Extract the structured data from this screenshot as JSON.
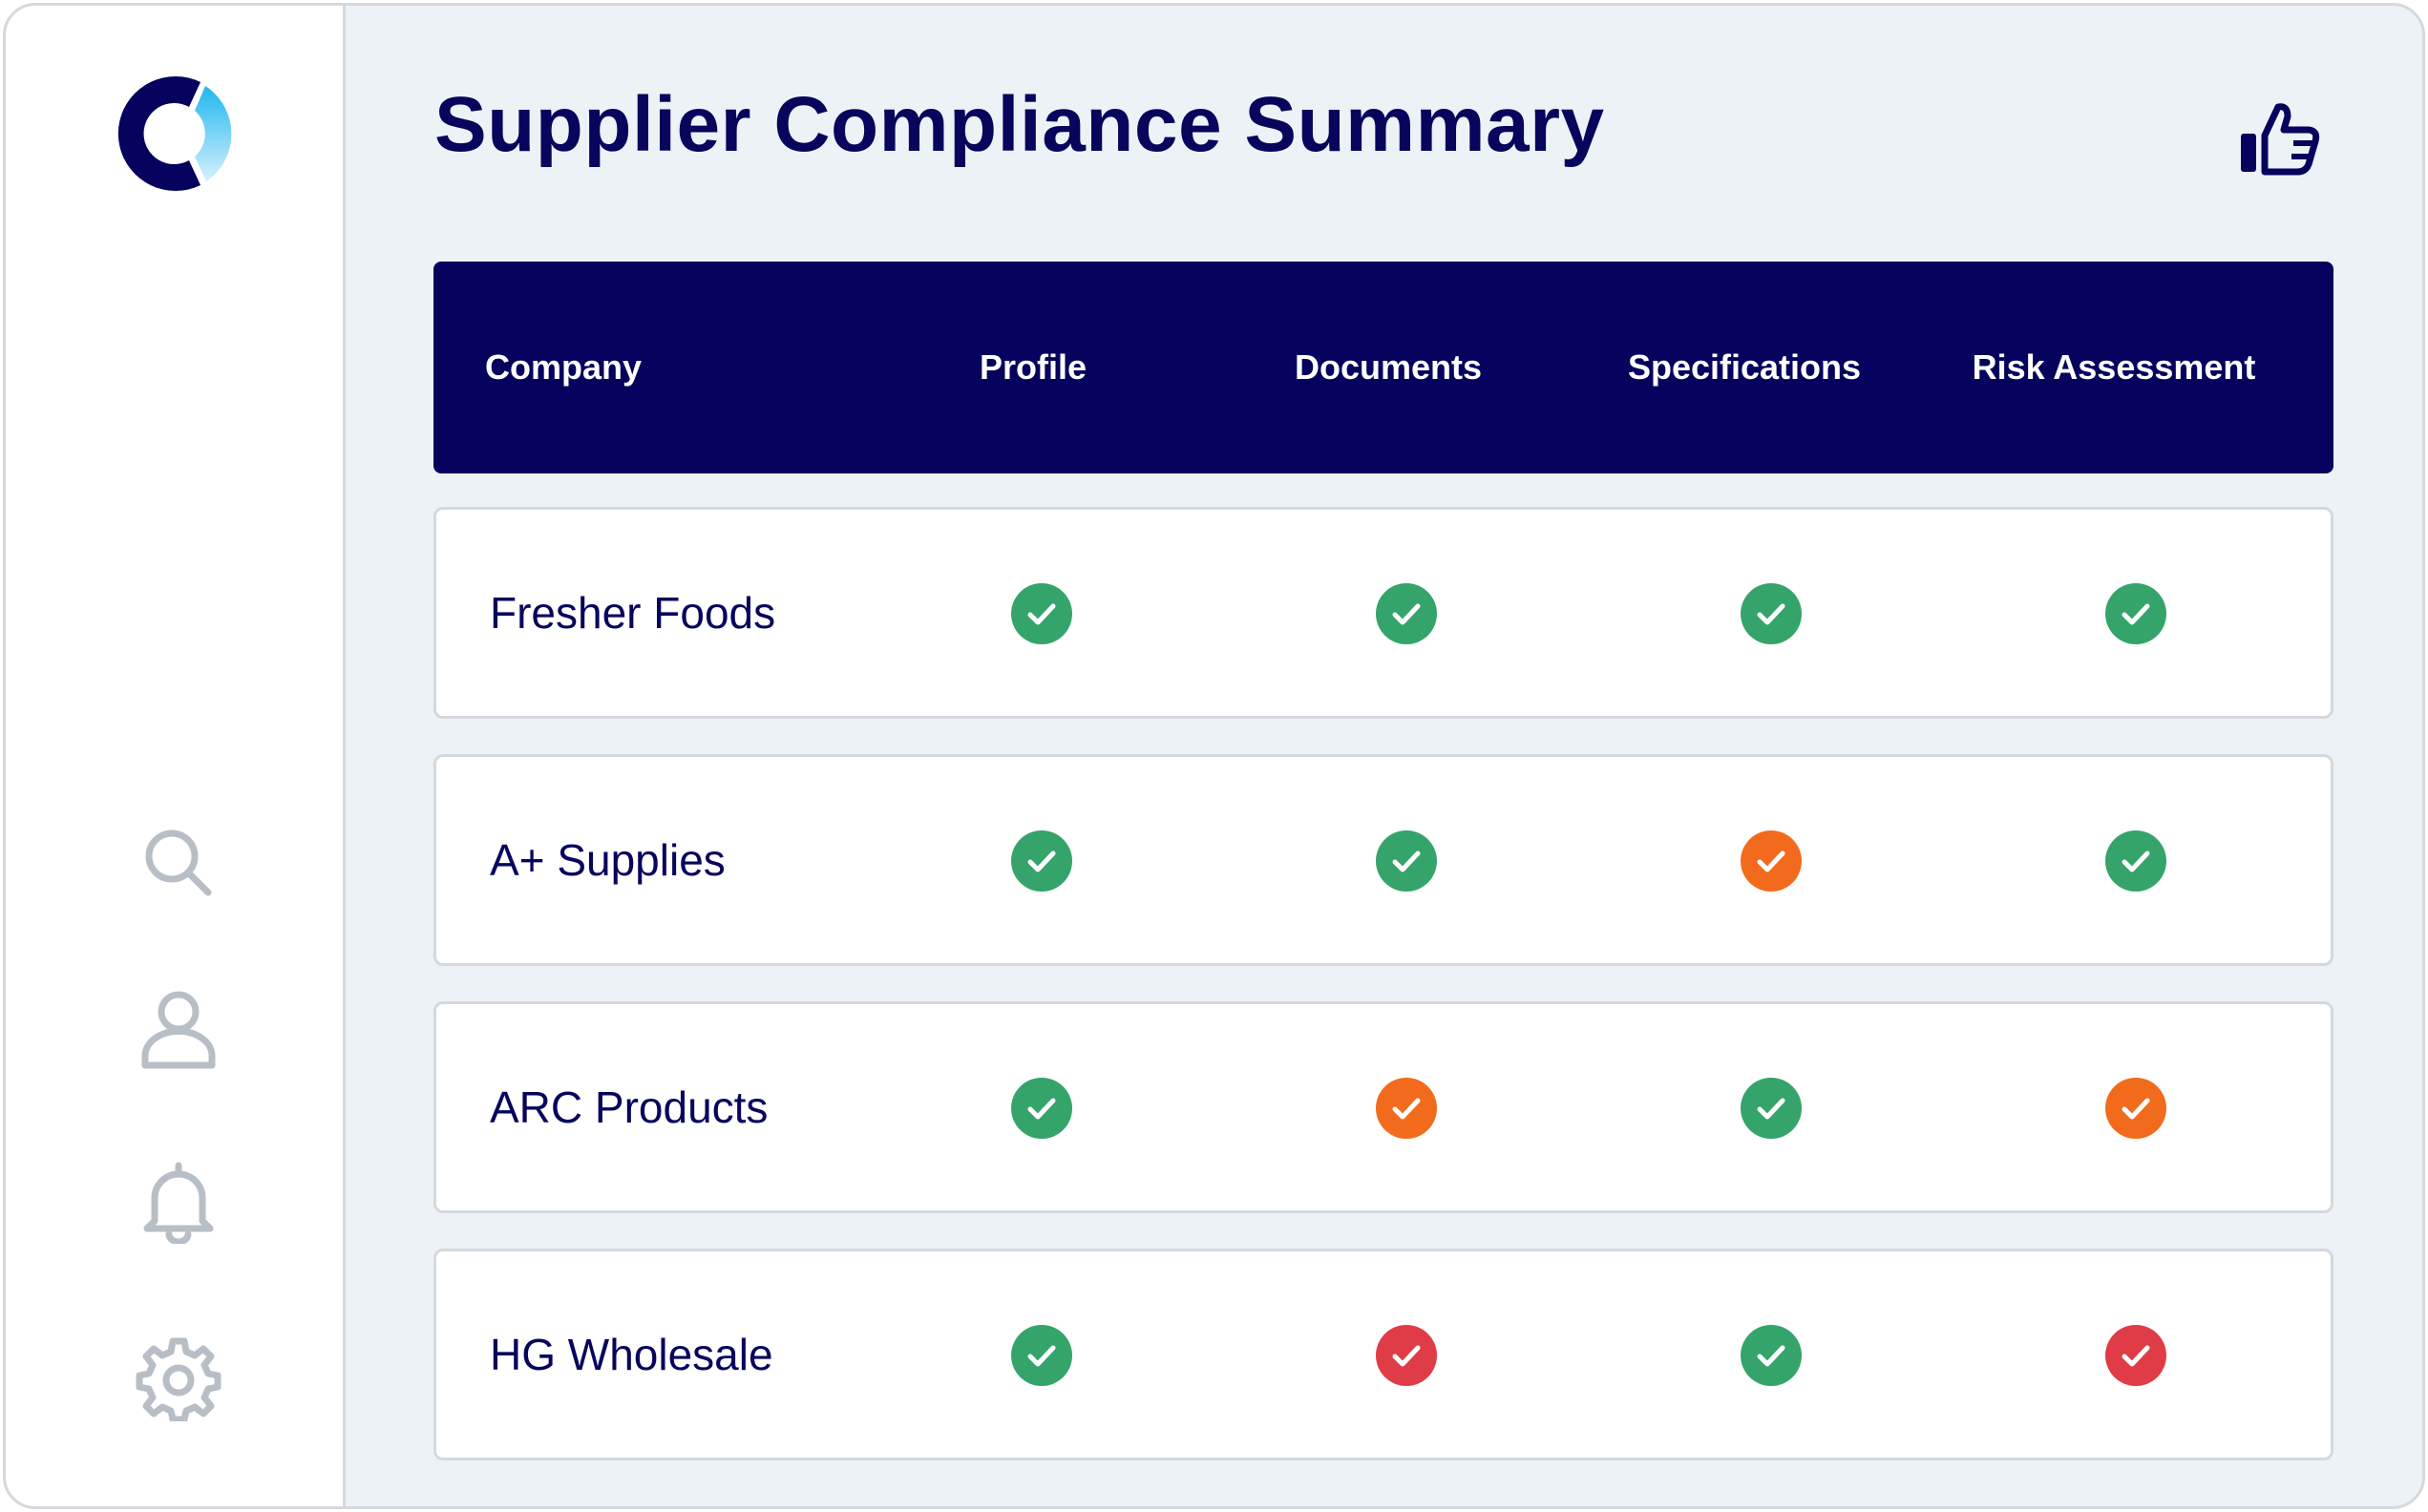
{
  "page": {
    "title": "Supplier Compliance Summary",
    "feedback_icon": "thumbs-up-icon"
  },
  "sidebar": {
    "logo": "app-logo",
    "items": [
      {
        "name": "search",
        "icon": "search-icon"
      },
      {
        "name": "profile",
        "icon": "user-icon"
      },
      {
        "name": "notifications",
        "icon": "bell-icon"
      },
      {
        "name": "settings",
        "icon": "gear-icon"
      }
    ]
  },
  "table": {
    "columns": [
      "Company",
      "Profile",
      "Documents",
      "Specifications",
      "Risk Assessment"
    ],
    "rows": [
      {
        "company": "Fresher Foods",
        "statuses": [
          "compliant",
          "compliant",
          "compliant",
          "compliant"
        ]
      },
      {
        "company": "A+ Supplies",
        "statuses": [
          "compliant",
          "compliant",
          "warning",
          "compliant"
        ]
      },
      {
        "company": "ARC Products",
        "statuses": [
          "compliant",
          "warning",
          "compliant",
          "warning"
        ]
      },
      {
        "company": "HG Wholesale",
        "statuses": [
          "compliant",
          "non-compliant",
          "compliant",
          "non-compliant"
        ]
      }
    ]
  },
  "colors": {
    "compliant": "#34a46a",
    "warning": "#f26b1d",
    "non-compliant": "#e03c47",
    "header_bg": "#05035d",
    "text": "#07055c"
  }
}
